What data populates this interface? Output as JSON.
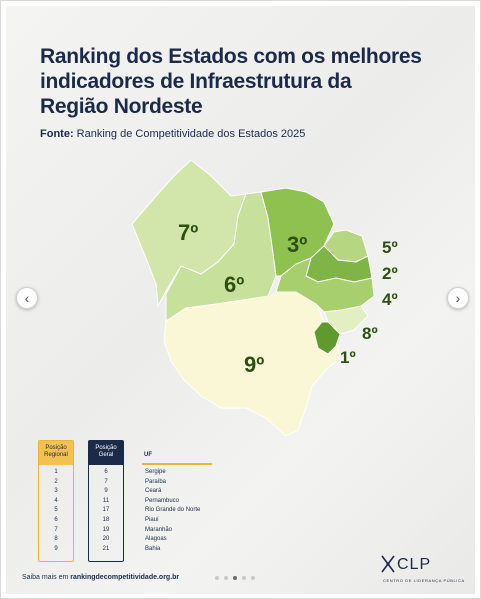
{
  "title": {
    "line1": "Ranking dos Estados com os melhores",
    "line2": "indicadores de Infraestrutura da",
    "line3": "Região Nordeste"
  },
  "source": {
    "label": "Fonte:",
    "text": "Ranking de Competitividade dos Estados 2025"
  },
  "map_labels": {
    "maranhao": "7º",
    "piaui": "6º",
    "ceara": "3º",
    "rn": "5º",
    "paraiba": "2º",
    "pernambuco": "4º",
    "alagoas": "8º",
    "sergipe": "1º",
    "bahia": "9º"
  },
  "colors": {
    "title": "#1c2a4a",
    "rank1": "#5f9a2c",
    "rank2": "#7fb447",
    "rank3": "#8ec150",
    "rank4": "#a8cf6d",
    "rank5": "#b6d681",
    "rank6": "#c7e09b",
    "rank7": "#d2e6ab",
    "rank8": "#e3efc2",
    "rank9": "#f9f7d6",
    "regional_header": "#f2c14e",
    "geral_header": "#1c2a4a"
  },
  "table": {
    "regional_header": "Posição Regional",
    "geral_header": "Posição Geral",
    "uf_header": "UF",
    "rows": [
      {
        "regional": "1",
        "geral": "6",
        "uf": "Sergipe"
      },
      {
        "regional": "2",
        "geral": "7",
        "uf": "Paraíba"
      },
      {
        "regional": "3",
        "geral": "9",
        "uf": "Ceará"
      },
      {
        "regional": "4",
        "geral": "11",
        "uf": "Pernambuco"
      },
      {
        "regional": "5",
        "geral": "17",
        "uf": "Rio Grande do Norte"
      },
      {
        "regional": "6",
        "geral": "18",
        "uf": "Piauí"
      },
      {
        "regional": "7",
        "geral": "19",
        "uf": "Maranhão"
      },
      {
        "regional": "8",
        "geral": "20",
        "uf": "Alagoas"
      },
      {
        "regional": "9",
        "geral": "21",
        "uf": "Bahia"
      }
    ]
  },
  "footer": {
    "prefix": "Saiba mais em",
    "link": "rankingdecompetitividade.org.br"
  },
  "logo": {
    "name": "CLP",
    "subtitle": "CENTRO DE LIDERANÇA PÚBLICA"
  },
  "nav": {
    "prev": "‹",
    "next": "›"
  },
  "carousel": {
    "count": 5,
    "active": 2
  }
}
